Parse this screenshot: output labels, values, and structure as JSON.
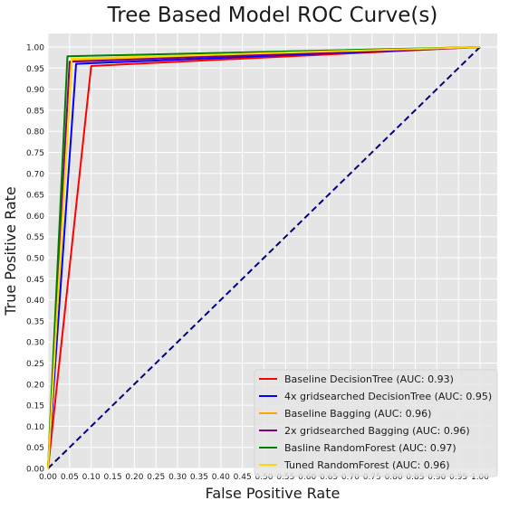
{
  "chart_data": {
    "type": "line",
    "title": "Tree Based Model ROC Curve(s)",
    "xlabel": "False Positive Rate",
    "ylabel": "True Positive Rate",
    "xlim": [
      0.0,
      1.0
    ],
    "ylim": [
      0.0,
      1.0
    ],
    "grid": true,
    "legend_position": "bottom-right",
    "x_ticks": [
      "0.00",
      "0.05",
      "0.10",
      "0.15",
      "0.20",
      "0.25",
      "0.30",
      "0.35",
      "0.40",
      "0.45",
      "0.50",
      "0.55",
      "0.60",
      "0.65",
      "0.70",
      "0.75",
      "0.80",
      "0.85",
      "0.90",
      "0.95",
      "1.00"
    ],
    "y_ticks": [
      "0.00",
      "0.05",
      "0.10",
      "0.15",
      "0.20",
      "0.25",
      "0.30",
      "0.35",
      "0.40",
      "0.45",
      "0.50",
      "0.55",
      "0.60",
      "0.65",
      "0.70",
      "0.75",
      "0.80",
      "0.85",
      "0.90",
      "0.95",
      "1.00"
    ],
    "series": [
      {
        "name": "Baseline DecisionTree (AUC: 0.93)",
        "color": "#ff0000",
        "x": [
          0.0,
          0.1,
          1.0
        ],
        "y": [
          0.0,
          0.955,
          1.0
        ]
      },
      {
        "name": "4x gridsearched DecisionTree (AUC: 0.95)",
        "color": "#0000ff",
        "x": [
          0.0,
          0.065,
          1.0
        ],
        "y": [
          0.0,
          0.96,
          1.0
        ]
      },
      {
        "name": "Baseline Bagging (AUC: 0.96)",
        "color": "#ffa500",
        "x": [
          0.0,
          0.055,
          1.0
        ],
        "y": [
          0.0,
          0.968,
          1.0
        ]
      },
      {
        "name": "2x gridsearched Bagging (AUC: 0.96)",
        "color": "#800080",
        "x": [
          0.0,
          0.05,
          1.0
        ],
        "y": [
          0.0,
          0.965,
          1.0
        ]
      },
      {
        "name": "Basline RandomForest (AUC: 0.97)",
        "color": "#008000",
        "x": [
          0.0,
          0.045,
          1.0
        ],
        "y": [
          0.0,
          0.978,
          1.0
        ]
      },
      {
        "name": "Tuned RandomForest (AUC: 0.96)",
        "color": "#ffd700",
        "x": [
          0.0,
          0.055,
          1.0
        ],
        "y": [
          0.0,
          0.972,
          1.0
        ]
      }
    ],
    "reference_line": {
      "color": "#000080",
      "style": "dashed",
      "x": [
        0.0,
        1.0
      ],
      "y": [
        0.0,
        1.0
      ]
    }
  }
}
